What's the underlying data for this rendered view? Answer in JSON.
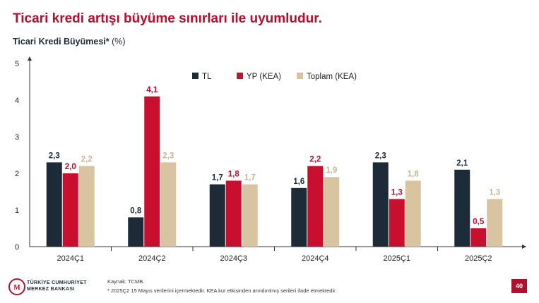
{
  "headline": "Ticari kredi artışı büyüme sınırları ile uyumludur.",
  "chart_title_bold": "Ticari Kredi Büyümesi*",
  "chart_title_unit": "(%)",
  "colors": {
    "TL": "#1d2b38",
    "YP (KEA)": "#c8102e",
    "Toplam (KEA)": "#d9c4a1",
    "accent": "#b0102e"
  },
  "chart_data": {
    "type": "bar",
    "title": "Ticari Kredi Büyümesi* (%)",
    "categories": [
      "2024Ç1",
      "2024Ç2",
      "2024Ç3",
      "2024Ç4",
      "2025Ç1",
      "2025Ç2"
    ],
    "series": [
      {
        "name": "TL",
        "values": [
          2.3,
          0.8,
          1.7,
          1.6,
          2.3,
          2.1
        ],
        "labels": [
          "2,3",
          "0,8",
          "1,7",
          "1,6",
          "2,3",
          "2,1"
        ]
      },
      {
        "name": "YP (KEA)",
        "values": [
          2.0,
          4.1,
          1.8,
          2.2,
          1.3,
          0.5
        ],
        "labels": [
          "2,0",
          "4,1",
          "1,8",
          "2,2",
          "1,3",
          "0,5"
        ]
      },
      {
        "name": "Toplam (KEA)",
        "values": [
          2.2,
          2.3,
          1.7,
          1.9,
          1.8,
          1.3
        ],
        "labels": [
          "2,2",
          "2,3",
          "1,7",
          "1,9",
          "1,8",
          "1,3"
        ]
      }
    ],
    "ylim": [
      0,
      5
    ],
    "yticks": [
      "0",
      "1",
      "2",
      "3",
      "4",
      "5"
    ],
    "legend_position": "top-right",
    "grid": false
  },
  "footer": {
    "source": "Kaynak: TCMB.",
    "note": "* 2025Ç2 15 Mayıs verilerini içermektedir. KEA kur etkisinden arındırılmış serileri ifade etmektedir.",
    "logo_text_1": "TÜRKİYE CUMHURİYET",
    "logo_text_2": "MERKEZ BANKASI",
    "page_number": "40"
  }
}
